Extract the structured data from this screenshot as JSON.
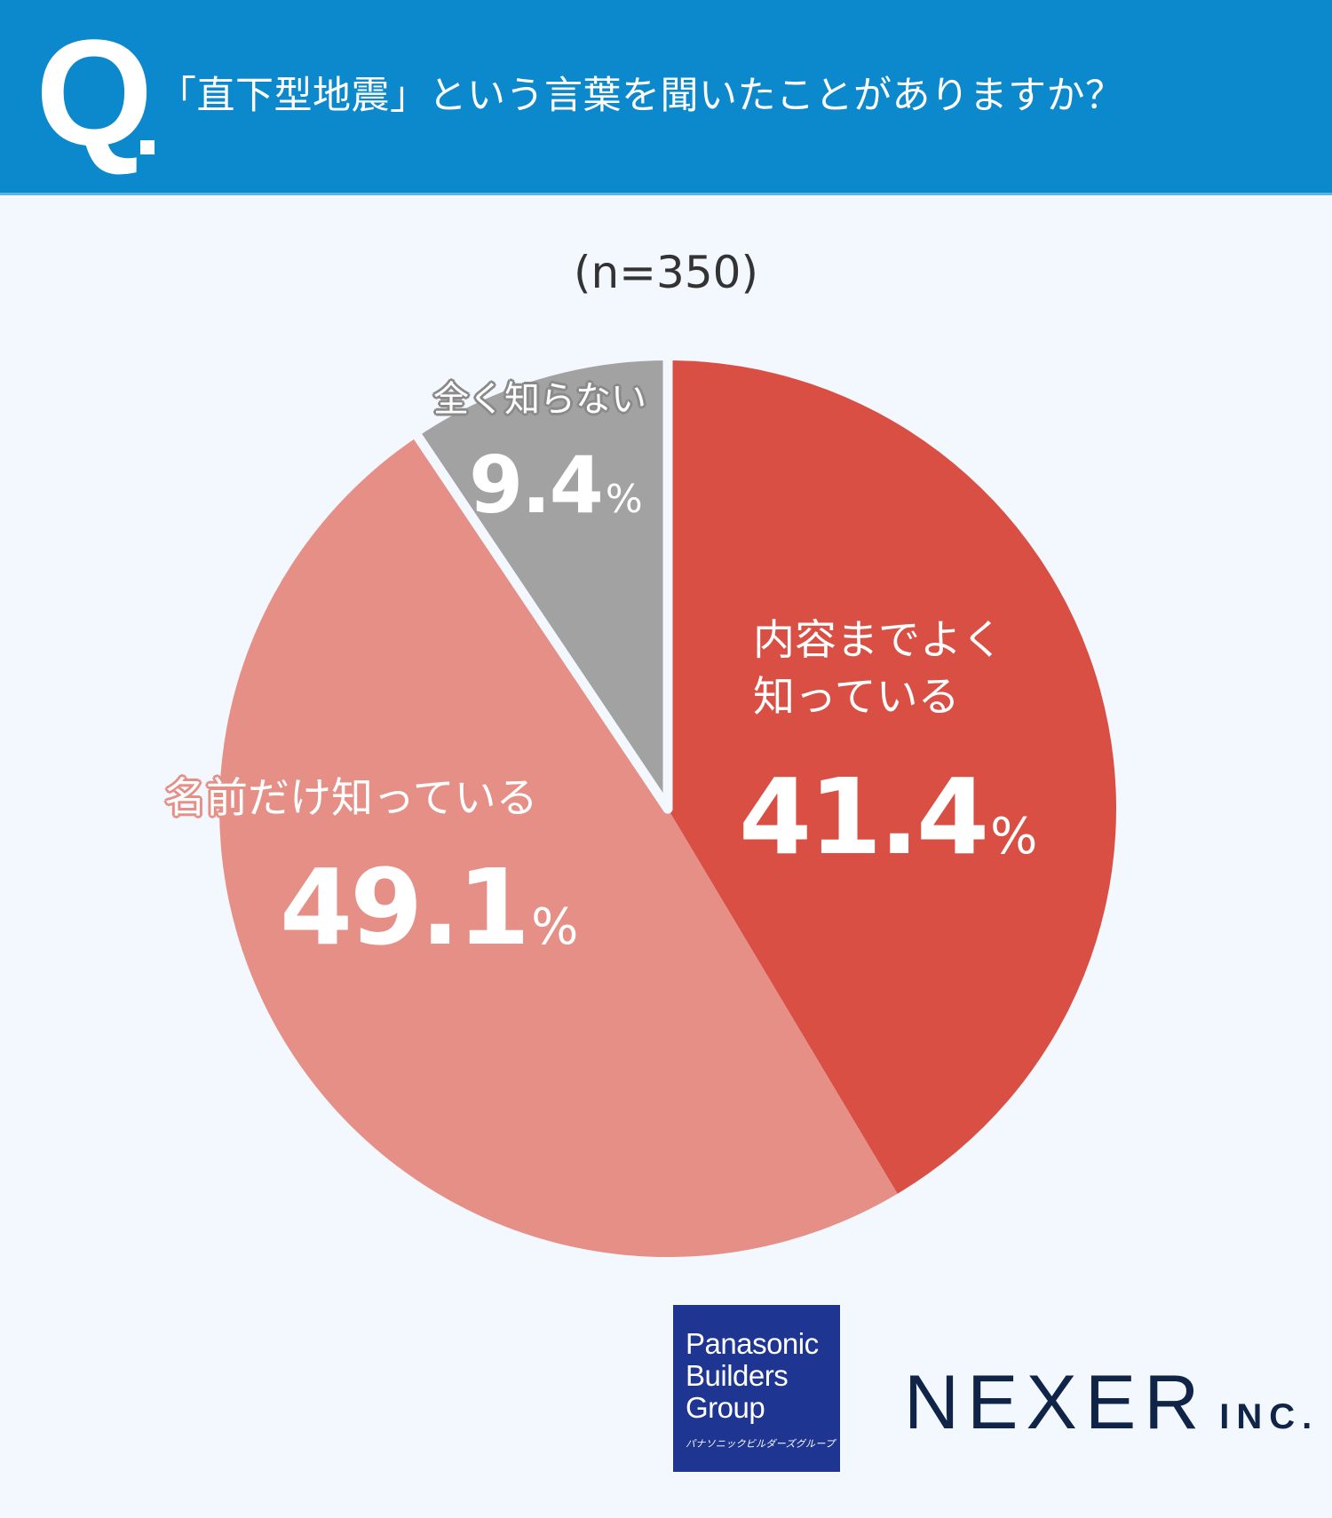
{
  "header": {
    "q_label": "Q",
    "question": "「直下型地震」という言葉を聞いたことがありますか？",
    "color": "#0c88cc"
  },
  "sample_size": "(n=350)",
  "slices": [
    {
      "label_lines": [
        "内容までよく",
        "知っている"
      ],
      "value": "41.4",
      "unit": "%",
      "color": "#da4f44"
    },
    {
      "label": "名前だけ知っている",
      "value": "49.1",
      "unit": "%",
      "color": "#e68f86"
    },
    {
      "label": "全く知らない",
      "value": "9.4",
      "unit": "%",
      "color": "#a2a2a2"
    }
  ],
  "logos": {
    "panasonic": {
      "lines": [
        "Panasonic",
        "Builders",
        "Group"
      ],
      "kana": "パナソニックビルダーズグループ",
      "color": "#1f3592"
    },
    "nexer": {
      "name": "NEXER",
      "suffix": "INC.",
      "color": "#0f2447"
    }
  },
  "chart_data": {
    "type": "pie",
    "title": "「直下型地震」という言葉を聞いたことがありますか？",
    "subtitle": "(n=350)",
    "categories": [
      "内容までよく知っている",
      "名前だけ知っている",
      "全く知らない"
    ],
    "values": [
      41.4,
      49.1,
      9.4
    ],
    "unit": "%",
    "colors": [
      "#da4f44",
      "#e68f86",
      "#a2a2a2"
    ],
    "start_angle": "12 o'clock",
    "direction": "clockwise",
    "legend": "none (labels on slices)"
  }
}
